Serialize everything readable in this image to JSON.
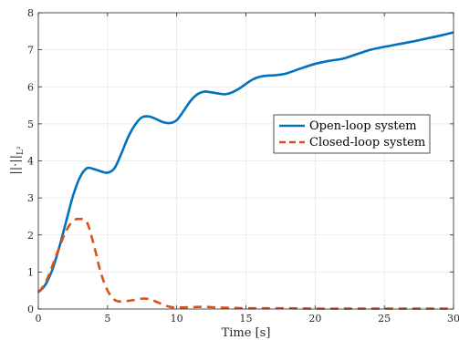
{
  "chart_data": {
    "type": "line",
    "xlabel": "Time [s]",
    "ylabel": "||·||",
    "ylabel_sub": "L²",
    "xlim": [
      0,
      30
    ],
    "ylim": [
      0,
      8
    ],
    "xticks": [
      0,
      5,
      10,
      15,
      20,
      25,
      30
    ],
    "yticks": [
      0,
      1,
      2,
      3,
      4,
      5,
      6,
      7,
      8
    ],
    "grid": true,
    "legend_position": "right",
    "series": [
      {
        "name": "Open-loop system",
        "color": "#0072BD",
        "style": "solid",
        "x": [
          0,
          0.5,
          1,
          1.5,
          2,
          2.5,
          3,
          3.5,
          4,
          4.5,
          5,
          5.5,
          6,
          6.5,
          7,
          7.5,
          8,
          8.5,
          9,
          9.5,
          10,
          10.5,
          11,
          11.5,
          12,
          12.5,
          13,
          13.5,
          14,
          14.5,
          15,
          15.5,
          16,
          16.5,
          17,
          17.5,
          18,
          19,
          20,
          21,
          22,
          23,
          24,
          25,
          26,
          27,
          28,
          29,
          30
        ],
        "y": [
          0.45,
          0.65,
          1.05,
          1.65,
          2.35,
          3.05,
          3.55,
          3.8,
          3.78,
          3.72,
          3.68,
          3.8,
          4.2,
          4.65,
          4.98,
          5.18,
          5.2,
          5.13,
          5.05,
          5.02,
          5.1,
          5.35,
          5.62,
          5.8,
          5.87,
          5.85,
          5.82,
          5.8,
          5.85,
          5.95,
          6.08,
          6.2,
          6.27,
          6.3,
          6.31,
          6.33,
          6.37,
          6.5,
          6.62,
          6.7,
          6.76,
          6.88,
          7.0,
          7.08,
          7.15,
          7.22,
          7.3,
          7.38,
          7.47
        ]
      },
      {
        "name": "Closed-loop system",
        "color": "#D95319",
        "style": "dashed",
        "x": [
          0,
          0.5,
          1,
          1.5,
          2,
          2.5,
          3,
          3.5,
          4,
          4.5,
          5,
          5.5,
          6,
          6.5,
          7,
          7.5,
          8,
          8.5,
          9,
          9.5,
          10,
          11,
          12,
          13,
          14,
          15,
          16,
          18,
          20,
          22,
          24,
          26,
          28,
          30
        ],
        "y": [
          0.45,
          0.7,
          1.15,
          1.65,
          2.1,
          2.38,
          2.43,
          2.35,
          1.75,
          1.0,
          0.5,
          0.25,
          0.2,
          0.22,
          0.25,
          0.28,
          0.27,
          0.2,
          0.12,
          0.06,
          0.04,
          0.05,
          0.06,
          0.04,
          0.03,
          0.02,
          0.02,
          0.02,
          0.01,
          0.01,
          0.01,
          0.01,
          0.01,
          0.01
        ]
      }
    ]
  }
}
